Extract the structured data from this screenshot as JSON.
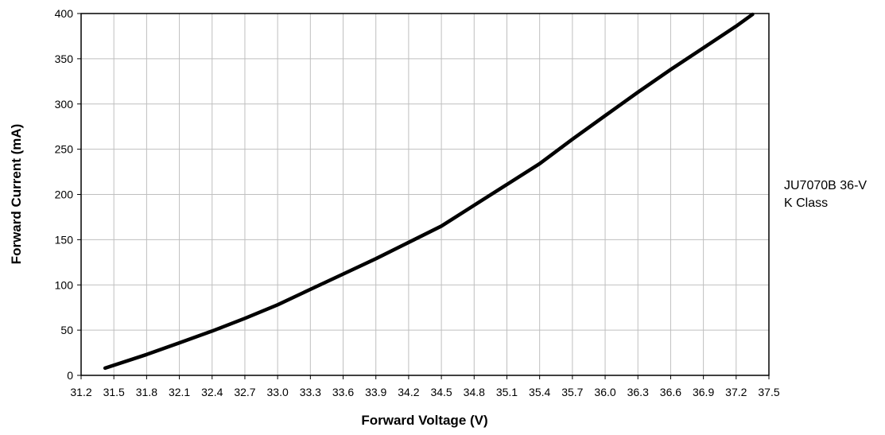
{
  "chart_data": {
    "type": "line",
    "xlabel": "Forward Voltage (V)",
    "ylabel": "Forward Current (mA)",
    "xlim": [
      31.2,
      37.5
    ],
    "ylim": [
      0,
      400
    ],
    "x_ticks": [
      "31.2",
      "31.5",
      "31.8",
      "32.1",
      "32.4",
      "32.7",
      "33.0",
      "33.3",
      "33.6",
      "33.9",
      "34.2",
      "34.5",
      "34.8",
      "35.1",
      "35.4",
      "35.7",
      "36.0",
      "36.3",
      "36.6",
      "36.9",
      "37.2",
      "37.5"
    ],
    "y_ticks": [
      "0",
      "50",
      "100",
      "150",
      "200",
      "250",
      "300",
      "350",
      "400"
    ],
    "grid": true,
    "legend_position": "right",
    "line_color": "#000000",
    "grid_color": "#bfbfbf",
    "series": [
      {
        "name": "JU7070B 36-V K Class",
        "x": [
          31.42,
          31.8,
          32.1,
          32.4,
          32.7,
          33.0,
          33.3,
          33.6,
          33.9,
          34.2,
          34.5,
          34.8,
          35.1,
          35.4,
          35.7,
          36.0,
          36.3,
          36.6,
          36.9,
          37.2,
          37.35
        ],
        "y": [
          8,
          23,
          36,
          49,
          63,
          78,
          95,
          112,
          129,
          147,
          165,
          188,
          211,
          234,
          261,
          287,
          313,
          338,
          362,
          386,
          399
        ]
      }
    ]
  },
  "legend": {
    "line1": "JU7070B 36-V",
    "line2": "K Class"
  }
}
